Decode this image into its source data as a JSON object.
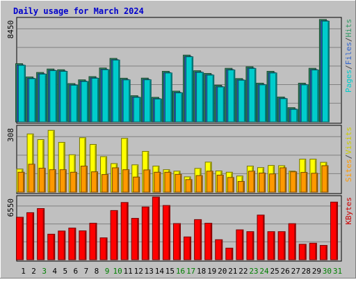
{
  "chart_data": {
    "type": "bar",
    "title": "Daily usage for March 2024",
    "categories": [
      "1",
      "2",
      "3",
      "4",
      "5",
      "6",
      "7",
      "8",
      "9",
      "10",
      "11",
      "12",
      "13",
      "14",
      "15",
      "16",
      "17",
      "18",
      "19",
      "20",
      "21",
      "22",
      "23",
      "24",
      "25",
      "26",
      "27",
      "28",
      "29",
      "30",
      "31"
    ],
    "weekend_days": [
      3,
      9,
      10,
      16,
      17,
      23,
      24,
      30,
      31
    ],
    "panels": [
      {
        "id": "top",
        "max_label": "8450",
        "ymax": 8450,
        "legend": [
          {
            "text": "Pages",
            "color": "#00cccc"
          },
          {
            "text": "/",
            "color": "#444444"
          },
          {
            "text": "Files",
            "color": "#3366cc"
          },
          {
            "text": "/",
            "color": "#444444"
          },
          {
            "text": "Hits",
            "color": "#339966"
          }
        ],
        "series": [
          {
            "name": "Hits",
            "color": "#339966",
            "values": [
              4802,
              3703,
              4075,
              4361,
              4302,
              3159,
              3467,
              3734,
              4444,
              5237,
              3601,
              2158,
              3609,
              2024,
              4171,
              2533,
              5508,
              4220,
              3996,
              3018,
              4418,
              3573,
              4545,
              3193,
              4171,
              2050,
              1170,
              3193,
              4418,
              8450,
              0
            ]
          },
          {
            "name": "Files",
            "color": "#3366cc",
            "values": [
              4696,
              3597,
              3969,
              4255,
              4196,
              3053,
              3361,
              3628,
              4338,
              5131,
              3495,
              2052,
              3503,
              1918,
              4065,
              2427,
              5402,
              4114,
              3890,
              2912,
              4312,
              3467,
              4439,
              3087,
              4065,
              1944,
              1064,
              3087,
              4312,
              8344,
              0
            ]
          },
          {
            "name": "Pages",
            "color": "#00cccc",
            "values": [
              4666,
              3567,
              3939,
              4225,
              4166,
              3023,
              3331,
              3598,
              4308,
              5101,
              3465,
              2022,
              3473,
              1888,
              4035,
              2397,
              5372,
              4084,
              3860,
              2882,
              4282,
              3437,
              4409,
              3057,
              4035,
              1914,
              1034,
              3057,
              4282,
              8314,
              0
            ]
          }
        ]
      },
      {
        "id": "middle",
        "max_label": "308",
        "ymax": 308,
        "legend": [
          {
            "text": "Sites",
            "color": "#ff9900"
          },
          {
            "text": "/",
            "color": "#444444"
          },
          {
            "text": "Visits",
            "color": "#cccc00"
          }
        ],
        "series": [
          {
            "name": "Visits",
            "color": "#ffff00",
            "values": [
              110,
              277,
              250,
              294,
              237,
              178,
              259,
              227,
              169,
              136,
              256,
              130,
              194,
              124,
              107,
              100,
              73,
              113,
              143,
              101,
              95,
              77,
              124,
              117,
              127,
              126,
              100,
              157,
              157,
              142,
              0
            ]
          },
          {
            "name": "Sites",
            "color": "#ff9900",
            "values": [
              95,
              133,
              114,
              107,
              107,
              95,
              124,
              97,
              84,
              116,
              107,
              72,
              106,
              95,
              95,
              85,
              60,
              79,
              100,
              81,
              70,
              51,
              100,
              91,
              87,
              116,
              97,
              94,
              90,
              126,
              0
            ]
          }
        ]
      },
      {
        "id": "bottom",
        "max_label": "6550",
        "ymax": 6550,
        "legend": [
          {
            "text": "KBytes",
            "color": "#cc0000"
          }
        ],
        "series": [
          {
            "name": "KBytes",
            "color": "#ff0000",
            "values": [
              4440,
              4919,
              5348,
              2669,
              3001,
              3313,
              3017,
              3813,
              2288,
              5141,
              5982,
              4324,
              5514,
              6550,
              5668,
              3781,
              2383,
              4193,
              3813,
              2093,
              1212,
              3126,
              2935,
              4668,
              2935,
              2935,
              3770,
              1615,
              1729,
              1497,
              6023
            ]
          }
        ]
      }
    ]
  }
}
